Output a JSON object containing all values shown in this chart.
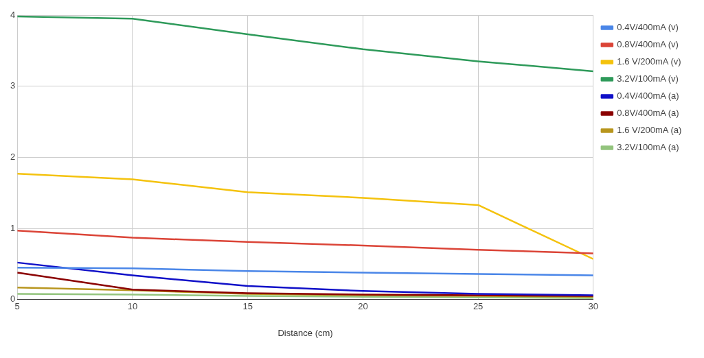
{
  "chart_data": {
    "type": "line",
    "xlabel": "Distance (cm)",
    "x": [
      5,
      10,
      15,
      20,
      25,
      30
    ],
    "xlim": [
      5,
      30
    ],
    "xticks": [
      5,
      10,
      15,
      20,
      25,
      30
    ],
    "ylim": [
      0,
      4
    ],
    "yticks": [
      0,
      1,
      2,
      3,
      4
    ],
    "grid": true,
    "legend": "top right",
    "marker": "none",
    "series": [
      {
        "name": "0.4V/400mA (v)",
        "color": "#4a86e8",
        "values": [
          0.45,
          0.44,
          0.4,
          0.38,
          0.36,
          0.34
        ]
      },
      {
        "name": "0.8V/400mA (v)",
        "color": "#db4437",
        "values": [
          0.97,
          0.87,
          0.81,
          0.76,
          0.7,
          0.65
        ]
      },
      {
        "name": "1.6 V/200mA (v)",
        "color": "#f4c20d",
        "values": [
          1.77,
          1.69,
          1.51,
          1.43,
          1.33,
          0.57
        ]
      },
      {
        "name": "3.2V/100mA (v)",
        "color": "#2e9a5a",
        "values": [
          3.98,
          3.95,
          3.73,
          3.52,
          3.35,
          3.21
        ]
      },
      {
        "name": "0.4V/400mA (a)",
        "color": "#1010c8",
        "values": [
          0.52,
          0.34,
          0.19,
          0.12,
          0.08,
          0.06
        ]
      },
      {
        "name": "0.8V/400mA (a)",
        "color": "#8b0000",
        "values": [
          0.38,
          0.14,
          0.09,
          0.07,
          0.06,
          0.05
        ]
      },
      {
        "name": "1.6 V/200mA (a)",
        "color": "#b8961e",
        "values": [
          0.17,
          0.13,
          0.08,
          0.06,
          0.05,
          0.04
        ]
      },
      {
        "name": "3.2V/100mA (a)",
        "color": "#93c47d",
        "values": [
          0.08,
          0.07,
          0.05,
          0.04,
          0.03,
          0.02
        ]
      }
    ]
  }
}
